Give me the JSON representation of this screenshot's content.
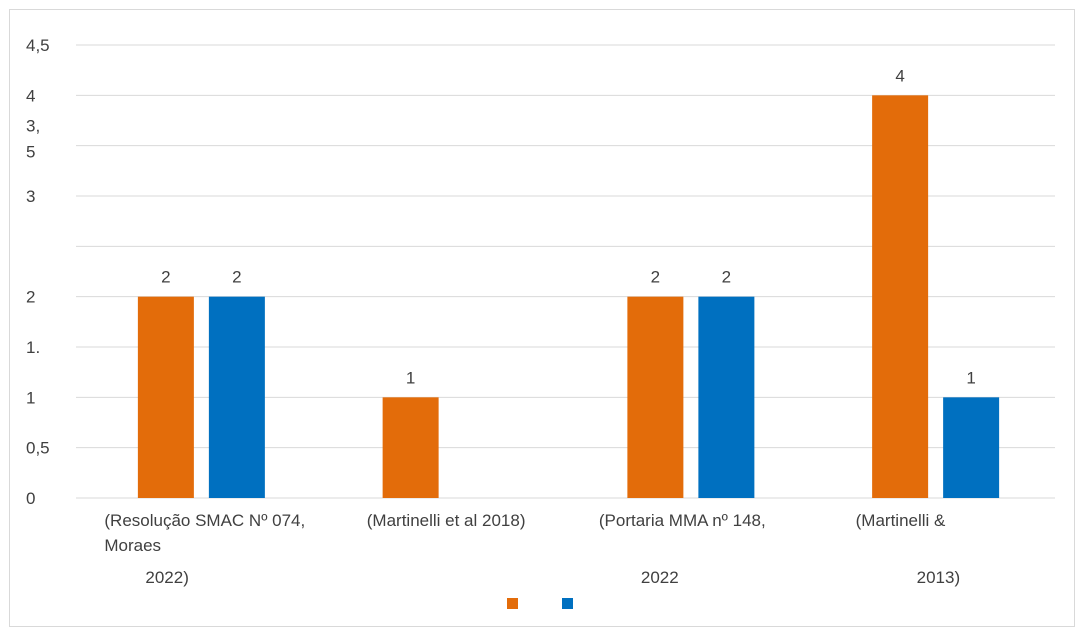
{
  "colors": {
    "series_1": "#e36c0a",
    "series_2": "#0070c0",
    "gridline": "#d9d9d9",
    "text": "#404040"
  },
  "chart_data": {
    "type": "bar",
    "title": "",
    "xlabel": "",
    "ylabel": "",
    "ylim": [
      0,
      4.5
    ],
    "grid": true,
    "legend_position": "bottom",
    "y_tick_values": [
      0,
      0.5,
      1,
      1.5,
      2,
      2.5,
      3,
      3.5,
      4,
      4.5
    ],
    "y_tick_labels": [
      "0",
      "0,5",
      "1",
      "1.",
      "2",
      "",
      "3",
      "3,\n5",
      "4",
      "4,5"
    ],
    "categories": [
      "(Resolução SMAC Nº 074,\nMoraes\n2022)",
      "(Martinelli et al 2018)",
      "(Portaria MMA nº 148,\n\n2022",
      "(Martinelli &\n\n2013)"
    ],
    "series": [
      {
        "values": [
          2,
          1,
          2,
          4
        ],
        "data_labels": [
          "2",
          "1",
          "2",
          "4"
        ]
      },
      {
        "values": [
          2,
          null,
          2,
          1
        ],
        "data_labels": [
          "2",
          "",
          "2",
          "1"
        ]
      }
    ]
  }
}
